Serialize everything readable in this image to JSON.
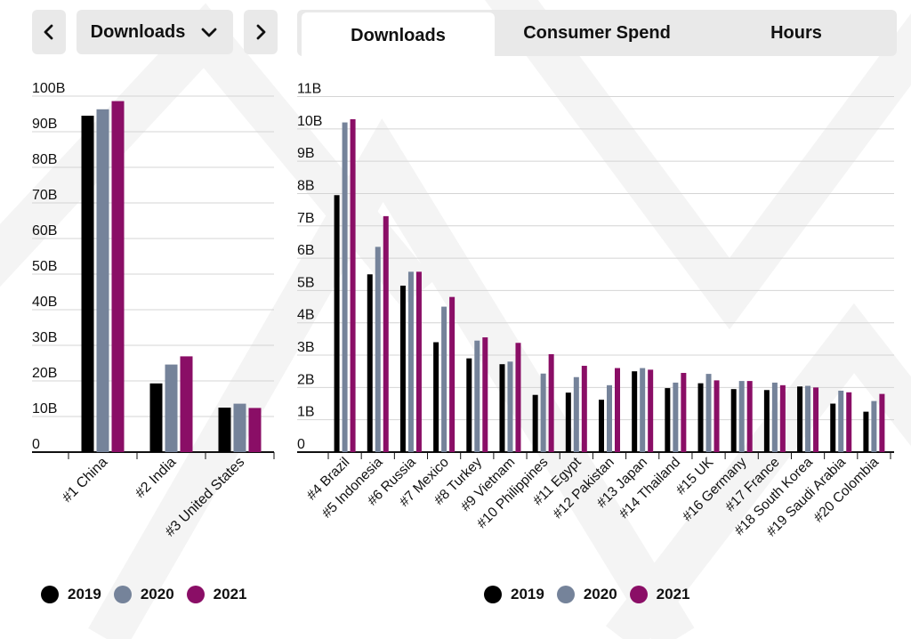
{
  "controls": {
    "prev_icon": "chevron-left-icon",
    "next_icon": "chevron-right-icon",
    "metric_select": {
      "selected": "Downloads",
      "icon": "chevron-down-icon"
    }
  },
  "tabs": [
    {
      "label": "Downloads",
      "active": true
    },
    {
      "label": "Consumer Spend",
      "active": false
    },
    {
      "label": "Hours",
      "active": false
    }
  ],
  "colors": {
    "2019": "#000000",
    "2020": "#75839a",
    "2021": "#8a0e66"
  },
  "chart_data": [
    {
      "type": "bar",
      "categories": [
        "#1 China",
        "#2 India",
        "#3 United States"
      ],
      "series": [
        {
          "name": "2019",
          "values": [
            94.5,
            19.3,
            12.5
          ]
        },
        {
          "name": "2020",
          "values": [
            96.3,
            24.6,
            13.6
          ]
        },
        {
          "name": "2021",
          "values": [
            98.6,
            26.9,
            12.4
          ]
        }
      ],
      "ylim": [
        0,
        100
      ],
      "yticks": [
        "0",
        "10B",
        "20B",
        "30B",
        "40B",
        "50B",
        "60B",
        "70B",
        "80B",
        "90B",
        "100B"
      ],
      "grid": true,
      "legend": "bottom"
    },
    {
      "type": "bar",
      "categories": [
        "#4 Brazil",
        "#5 Indonesia",
        "#6 Russia",
        "#7 Mexico",
        "#8 Turkey",
        "#9 Vietnam",
        "#10 Philippines",
        "#11 Egypt",
        "#12 Pakistan",
        "#13 Japan",
        "#14 Thailand",
        "#15 UK",
        "#16 Germany",
        "#17 France",
        "#18 South Korea",
        "#19 Saudi Arabia",
        "#20 Colombia"
      ],
      "series": [
        {
          "name": "2019",
          "values": [
            7.95,
            5.5,
            5.15,
            3.4,
            2.9,
            2.72,
            1.77,
            1.84,
            1.62,
            2.5,
            1.98,
            2.13,
            1.95,
            1.92,
            2.03,
            1.5,
            1.25
          ]
        },
        {
          "name": "2020",
          "values": [
            10.2,
            6.35,
            5.58,
            4.5,
            3.45,
            2.8,
            2.43,
            2.32,
            2.07,
            2.6,
            2.15,
            2.42,
            2.2,
            2.15,
            2.05,
            1.9,
            1.58
          ]
        },
        {
          "name": "2021",
          "values": [
            10.3,
            7.3,
            5.58,
            4.8,
            3.55,
            3.38,
            3.03,
            2.67,
            2.6,
            2.55,
            2.45,
            2.22,
            2.2,
            2.07,
            2.0,
            1.85,
            1.8
          ]
        }
      ],
      "ylim": [
        0,
        11
      ],
      "yticks": [
        "0",
        "1B",
        "2B",
        "3B",
        "4B",
        "5B",
        "6B",
        "7B",
        "8B",
        "9B",
        "10B",
        "11B"
      ],
      "grid": true,
      "legend": "bottom"
    }
  ]
}
